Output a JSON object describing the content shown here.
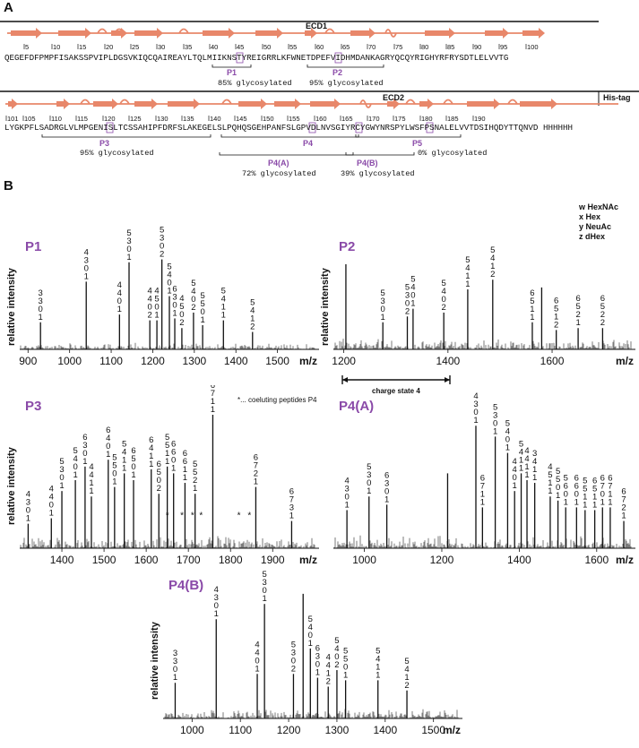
{
  "panel_a_label": "A",
  "panel_b_label": "B",
  "ecd1": {
    "title": "ECD1",
    "ticks": [
      "5",
      "10",
      "15",
      "20",
      "25",
      "30",
      "35",
      "40",
      "45",
      "50",
      "55",
      "60",
      "65",
      "70",
      "75",
      "80",
      "85",
      "90",
      "95",
      "100"
    ],
    "sequence": "QEGEFDFPMPFISAKSSPVIPLDGSVKIQCQAIREAYLTQLMIIKNSTYREIGRRLKFWNETDPEFVIDHMDANKAGRYQCQYRIGHYRFRYSDTLELVVTG",
    "sites": [
      {
        "label": "P1",
        "glyco": "85% glycosylated"
      },
      {
        "label": "P2",
        "glyco": "95% glycosylated"
      }
    ]
  },
  "ecd2": {
    "title": "ECD2",
    "histag": "His-tag",
    "ticks": [
      "101",
      "105",
      "110",
      "115",
      "120",
      "125",
      "130",
      "135",
      "140",
      "145",
      "150",
      "155",
      "160",
      "165",
      "170",
      "175",
      "180",
      "185",
      "190"
    ],
    "sequence": "LYGKPFLSADRGLVLMPGENISLTCSSAHIPFDRFSLAKEGELSLPQHQSGEHPANFSLGPVDLNVSGIYRCYGWYNRSPYLWSFPSNALELVVTDSIHQDYTTQNVD HHHHHH",
    "sites": [
      {
        "label": "P3",
        "glyco": "95% glycosylated"
      },
      {
        "label": "P4",
        "glyco": ""
      },
      {
        "label": "P5",
        "glyco": "0% glycosylated"
      },
      {
        "label": "P4(A)",
        "glyco": "72% glycosylated"
      },
      {
        "label": "P4(B)",
        "glyco": "39% glycosylated"
      }
    ]
  },
  "legend": {
    "lines": [
      "w HexNAc",
      "x Hex",
      "y NeuAc",
      "z dHex"
    ]
  },
  "ylabel": "relative intensity",
  "xlabel": "m/z",
  "coeluting_note": "*... coeluting peptides P4",
  "charge_state_note": "charge state 4",
  "colors": {
    "purple": "#8a4aa8",
    "orange": "#e8876a",
    "black": "#111111"
  },
  "chart_data": [
    {
      "type": "bar",
      "title": "P1",
      "xlabel": "m/z",
      "ylabel": "relative intensity",
      "xlim": [
        880,
        1600
      ],
      "ticks": [
        900,
        1000,
        1100,
        1200,
        1300,
        1400,
        1500
      ],
      "peaks": [
        {
          "x": 930,
          "y": 0.28,
          "label": [
            "3",
            "3",
            "0",
            "1"
          ]
        },
        {
          "x": 1040,
          "y": 0.7,
          "label": [
            "4",
            "3",
            "0",
            "1"
          ]
        },
        {
          "x": 1120,
          "y": 0.36,
          "label": [
            "4",
            "4",
            "0",
            "1"
          ]
        },
        {
          "x": 1143,
          "y": 0.9,
          "label": [
            "5",
            "3",
            "0",
            "1"
          ]
        },
        {
          "x": 1193,
          "y": 0.3,
          "label": [
            "4",
            "4",
            "0",
            "2"
          ]
        },
        {
          "x": 1210,
          "y": 0.3,
          "label": [
            "4",
            "5",
            "0",
            "1"
          ]
        },
        {
          "x": 1222,
          "y": 0.93,
          "label": [
            "5",
            "3",
            "0",
            "2"
          ]
        },
        {
          "x": 1240,
          "y": 0.55,
          "label": [
            "5",
            "4",
            "0",
            "1"
          ]
        },
        {
          "x": 1253,
          "y": 0.32,
          "label": [
            "6",
            "3",
            "0",
            "1"
          ]
        },
        {
          "x": 1270,
          "y": 0.22,
          "label": [
            "4",
            "5",
            "0",
            "2"
          ]
        },
        {
          "x": 1298,
          "y": 0.38,
          "label": [
            "5",
            "4",
            "0",
            "2"
          ]
        },
        {
          "x": 1320,
          "y": 0.25,
          "label": [
            "5",
            "5",
            "0",
            "1"
          ]
        },
        {
          "x": 1370,
          "y": 0.3,
          "label": [
            "5",
            "4",
            "1",
            "1"
          ]
        },
        {
          "x": 1440,
          "y": 0.18,
          "label": [
            "5",
            "4",
            "1",
            "2"
          ]
        }
      ]
    },
    {
      "type": "bar",
      "title": "P2",
      "xlabel": "m/z",
      "ylabel": "relative intensity",
      "xlim": [
        1180,
        1760
      ],
      "ticks": [
        1200,
        1400,
        1600
      ],
      "peaks": [
        {
          "x": 1204,
          "y": 0.88,
          "label": []
        },
        {
          "x": 1275,
          "y": 0.28,
          "label": [
            "5",
            "3",
            "0",
            "1"
          ]
        },
        {
          "x": 1322,
          "y": 0.34,
          "label": [
            "5",
            "3",
            "0",
            "2"
          ]
        },
        {
          "x": 1333,
          "y": 0.42,
          "label": [
            "5",
            "4",
            "0",
            "1"
          ]
        },
        {
          "x": 1392,
          "y": 0.38,
          "label": [
            "5",
            "4",
            "0",
            "2"
          ]
        },
        {
          "x": 1438,
          "y": 0.62,
          "label": [
            "5",
            "4",
            "1",
            "1"
          ]
        },
        {
          "x": 1486,
          "y": 0.72,
          "label": [
            "5",
            "4",
            "1",
            "2"
          ]
        },
        {
          "x": 1562,
          "y": 0.28,
          "label": [
            "6",
            "5",
            "1",
            "1"
          ]
        },
        {
          "x": 1580,
          "y": 0.64,
          "label": []
        },
        {
          "x": 1608,
          "y": 0.2,
          "label": [
            "6",
            "5",
            "1",
            "2"
          ]
        },
        {
          "x": 1650,
          "y": 0.22,
          "label": [
            "6",
            "5",
            "2",
            "1"
          ]
        },
        {
          "x": 1697,
          "y": 0.22,
          "label": [
            "6",
            "5",
            "2",
            "2"
          ]
        }
      ]
    },
    {
      "type": "bar",
      "title": "P3",
      "xlabel": "m/z",
      "ylabel": "relative intensity",
      "xlim": [
        1300,
        2010
      ],
      "ticks": [
        1400,
        1500,
        1600,
        1700,
        1800,
        1900
      ],
      "peaks": [
        {
          "x": 1320,
          "y": 0.18,
          "label": [
            "4",
            "3",
            "0",
            "1"
          ]
        },
        {
          "x": 1375,
          "y": 0.22,
          "label": [
            "4",
            "4",
            "0",
            "1"
          ]
        },
        {
          "x": 1400,
          "y": 0.42,
          "label": [
            "5",
            "3",
            "0",
            "1"
          ]
        },
        {
          "x": 1432,
          "y": 0.5,
          "label": [
            "5",
            "4",
            "0",
            "1"
          ]
        },
        {
          "x": 1455,
          "y": 0.6,
          "label": [
            "6",
            "3",
            "0",
            "1"
          ]
        },
        {
          "x": 1470,
          "y": 0.38,
          "label": [
            "4",
            "4",
            "1",
            "1"
          ]
        },
        {
          "x": 1510,
          "y": 0.65,
          "label": [
            "6",
            "4",
            "0",
            "1"
          ]
        },
        {
          "x": 1525,
          "y": 0.45,
          "label": [
            "5",
            "5",
            "0",
            "1"
          ]
        },
        {
          "x": 1548,
          "y": 0.55,
          "label": [
            "5",
            "4",
            "1",
            "1"
          ]
        },
        {
          "x": 1570,
          "y": 0.5,
          "label": [
            "6",
            "5",
            "0",
            "1"
          ]
        },
        {
          "x": 1612,
          "y": 0.58,
          "label": [
            "6",
            "4",
            "1",
            "1"
          ]
        },
        {
          "x": 1630,
          "y": 0.4,
          "label": [
            "6",
            "5",
            "0",
            "2"
          ]
        },
        {
          "x": 1650,
          "y": 0.6,
          "label": [
            "5",
            "5",
            "1",
            "1"
          ]
        },
        {
          "x": 1665,
          "y": 0.55,
          "label": [
            "6",
            "6",
            "0",
            "1"
          ]
        },
        {
          "x": 1692,
          "y": 0.48,
          "label": [
            "6",
            "6",
            "1",
            "1"
          ]
        },
        {
          "x": 1716,
          "y": 0.4,
          "label": [
            "5",
            "5",
            "2",
            "1"
          ]
        },
        {
          "x": 1758,
          "y": 0.98,
          "label": [
            "6",
            "7",
            "1",
            "1"
          ]
        },
        {
          "x": 1860,
          "y": 0.45,
          "label": [
            "6",
            "7",
            "2",
            "1"
          ]
        },
        {
          "x": 1945,
          "y": 0.2,
          "label": [
            "6",
            "7",
            "3",
            "1"
          ]
        }
      ],
      "asterisks": [
        1650,
        1685,
        1710,
        1730,
        1820,
        1845
      ]
    },
    {
      "type": "bar",
      "title": "P4(A)",
      "xlabel": "m/z",
      "ylabel": "relative intensity",
      "xlim": [
        920,
        1700
      ],
      "ticks": [
        1000,
        1200,
        1400,
        1600
      ],
      "peaks": [
        {
          "x": 955,
          "y": 0.28,
          "label": [
            "4",
            "3",
            "0",
            "1"
          ]
        },
        {
          "x": 1012,
          "y": 0.38,
          "label": [
            "5",
            "3",
            "0",
            "1"
          ]
        },
        {
          "x": 1058,
          "y": 0.32,
          "label": [
            "6",
            "3",
            "0",
            "1"
          ]
        },
        {
          "x": 1215,
          "y": 0.55,
          "label": []
        },
        {
          "x": 1288,
          "y": 0.9,
          "label": [
            "4",
            "3",
            "0",
            "1"
          ]
        },
        {
          "x": 1305,
          "y": 0.3,
          "label": [
            "6",
            "7",
            "1",
            "1"
          ]
        },
        {
          "x": 1338,
          "y": 0.82,
          "label": [
            "5",
            "3",
            "0",
            "1"
          ]
        },
        {
          "x": 1370,
          "y": 0.7,
          "label": [
            "5",
            "4",
            "0",
            "1"
          ]
        },
        {
          "x": 1388,
          "y": 0.42,
          "label": [
            "4",
            "4",
            "0",
            "1"
          ]
        },
        {
          "x": 1405,
          "y": 0.55,
          "label": [
            "5",
            "4",
            "1",
            "1"
          ]
        },
        {
          "x": 1420,
          "y": 0.5,
          "label": [
            "4",
            "4",
            "1",
            "1"
          ]
        },
        {
          "x": 1440,
          "y": 0.48,
          "label": [
            "3",
            "4",
            "1",
            "1"
          ]
        },
        {
          "x": 1480,
          "y": 0.38,
          "label": [
            "4",
            "5",
            "1",
            "1"
          ]
        },
        {
          "x": 1500,
          "y": 0.35,
          "label": [
            "5",
            "5",
            "0",
            "1"
          ]
        },
        {
          "x": 1520,
          "y": 0.3,
          "label": [
            "5",
            "6",
            "0",
            "1"
          ]
        },
        {
          "x": 1548,
          "y": 0.3,
          "label": [
            "6",
            "6",
            "0",
            "1"
          ]
        },
        {
          "x": 1570,
          "y": 0.28,
          "label": [
            "5",
            "5",
            "1",
            "1"
          ]
        },
        {
          "x": 1595,
          "y": 0.28,
          "label": [
            "6",
            "5",
            "1",
            "1"
          ]
        },
        {
          "x": 1615,
          "y": 0.3,
          "label": [
            "6",
            "7",
            "0",
            "1"
          ]
        },
        {
          "x": 1635,
          "y": 0.3,
          "label": [
            "6",
            "7",
            "1",
            "1"
          ]
        },
        {
          "x": 1670,
          "y": 0.2,
          "label": [
            "6",
            "7",
            "2",
            "1"
          ]
        }
      ]
    },
    {
      "type": "bar",
      "title": "P4(B)",
      "xlabel": "m/z",
      "ylabel": "relative intensity",
      "xlim": [
        940,
        1560
      ],
      "ticks": [
        1000,
        1100,
        1200,
        1300,
        1400,
        1500
      ],
      "peaks": [
        {
          "x": 965,
          "y": 0.28,
          "label": [
            "3",
            "3",
            "0",
            "1"
          ]
        },
        {
          "x": 1050,
          "y": 0.78,
          "label": [
            "4",
            "3",
            "0",
            "1"
          ]
        },
        {
          "x": 1135,
          "y": 0.35,
          "label": [
            "4",
            "4",
            "0",
            "1"
          ]
        },
        {
          "x": 1150,
          "y": 0.9,
          "label": [
            "5",
            "3",
            "0",
            "1"
          ]
        },
        {
          "x": 1210,
          "y": 0.35,
          "label": [
            "5",
            "3",
            "0",
            "2"
          ]
        },
        {
          "x": 1230,
          "y": 0.98,
          "label": []
        },
        {
          "x": 1245,
          "y": 0.55,
          "label": [
            "5",
            "4",
            "0",
            "1"
          ]
        },
        {
          "x": 1260,
          "y": 0.32,
          "label": [
            "6",
            "3",
            "0",
            "1"
          ]
        },
        {
          "x": 1282,
          "y": 0.25,
          "label": [
            "4",
            "4",
            "1",
            "2"
          ]
        },
        {
          "x": 1300,
          "y": 0.38,
          "label": [
            "5",
            "4",
            "0",
            "2"
          ]
        },
        {
          "x": 1318,
          "y": 0.3,
          "label": [
            "5",
            "5",
            "0",
            "1"
          ]
        },
        {
          "x": 1385,
          "y": 0.3,
          "label": [
            "5",
            "4",
            "1",
            "1"
          ]
        },
        {
          "x": 1445,
          "y": 0.22,
          "label": [
            "5",
            "4",
            "1",
            "2"
          ]
        }
      ]
    }
  ]
}
